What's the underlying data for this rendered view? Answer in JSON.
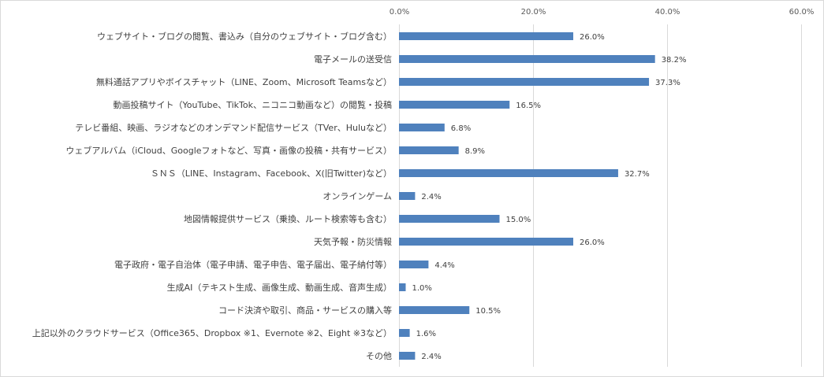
{
  "chart_data": {
    "type": "bar",
    "orientation": "horizontal",
    "categories": [
      "ウェブサイト・ブログの閲覧、書込み（自分のウェブサイト・ブログ含む）",
      "電子メールの送受信",
      "無料通話アプリやボイスチャット（LINE、Zoom、Microsoft Teamsなど）",
      "動画投稿サイト（YouTube、TikTok、ニコニコ動画など）の閲覧・投稿",
      "テレビ番組、映画、ラジオなどのオンデマンド配信サービス（TVer、Huluなど）",
      "ウェブアルバム（iCloud、Googleフォトなど、写真・画像の投稿・共有サービス）",
      "ＳＮＳ（LINE、Instagram、Facebook、X(旧Twitter)など）",
      "オンラインゲーム",
      "地図情報提供サービス（乗換、ルート検索等も含む）",
      "天気予報・防災情報",
      "電子政府・電子自治体（電子申請、電子申告、電子届出、電子納付等）",
      "生成AI（テキスト生成、画像生成、動画生成、音声生成）",
      "コード決済や取引、商品・サービスの購入等",
      "上記以外のクラウドサービス（Office365、Dropbox ※1、Evernote ※2、Eight ※3など）",
      "その他"
    ],
    "values": [
      26.0,
      38.2,
      37.3,
      16.5,
      6.8,
      8.9,
      32.7,
      2.4,
      15.0,
      26.0,
      4.4,
      1.0,
      10.5,
      1.6,
      2.4
    ],
    "value_labels": [
      "26.0%",
      "38.2%",
      "37.3%",
      "16.5%",
      "6.8%",
      "8.9%",
      "32.7%",
      "2.4%",
      "15.0%",
      "26.0%",
      "4.4%",
      "1.0%",
      "10.5%",
      "1.6%",
      "2.4%"
    ],
    "x_ticks": [
      0,
      20,
      40,
      60
    ],
    "x_tick_labels": [
      "0.0%",
      "20.0%",
      "40.0%",
      "60.0%"
    ],
    "xlim": [
      0,
      60
    ],
    "x_axis_position": "top",
    "grid": true,
    "legend": "none",
    "bar_color": "#4f81bd",
    "grid_color": "#d9d9d9",
    "title": "",
    "xlabel": "",
    "ylabel": ""
  }
}
